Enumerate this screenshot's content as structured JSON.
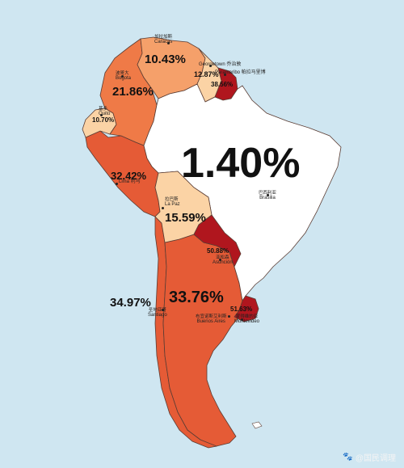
{
  "colors": {
    "ocean": "#cfe6f1",
    "brazil": "#ffffff",
    "very_light": "#fbd3a5",
    "light": "#f5a06a",
    "medium": "#ef7a47",
    "dark": "#e55b36",
    "darkest": "#b0161e",
    "border": "#5a3c33"
  },
  "labels": {
    "venezuela": "10.43%",
    "guyana": "12.87%",
    "suriname": "38.56%",
    "colombia": "21.86%",
    "ecuador": "10.70%",
    "brazil": "1.40%",
    "peru": "32.42%",
    "bolivia": "15.59%",
    "paraguay": "50.88%",
    "chile": "34.97%",
    "argentina": "33.76%",
    "uruguay": "51.63%"
  },
  "capitals": {
    "caracas_zh": "加拉加斯",
    "caracas": "Caracas",
    "georgetown": "Georgetown 乔治敦",
    "paramaribo": "Paramaribo 帕拉马里博",
    "bogota_zh": "波哥大",
    "bogota": "Bogota",
    "quito_zh": "基多",
    "quito": "Quito",
    "brasilia_zh": "巴西利亚",
    "brasilia": "Brasilia",
    "lima": "Lima 利马",
    "lapaz_zh": "拉巴斯",
    "lapaz": "La Paz",
    "asuncion_zh": "亚松森",
    "asuncion": "Asunción",
    "santiago_zh": "圣地亚哥",
    "santiago": "Santiago",
    "buenosaires_zh": "布宜诺斯艾利斯",
    "buenosaires": "Buenos Aires",
    "montevideo_zh": "蒙得维的亚",
    "montevideo": "Montevideo"
  },
  "watermark": {
    "icon": "paw-icon",
    "text": "@国民调理"
  }
}
